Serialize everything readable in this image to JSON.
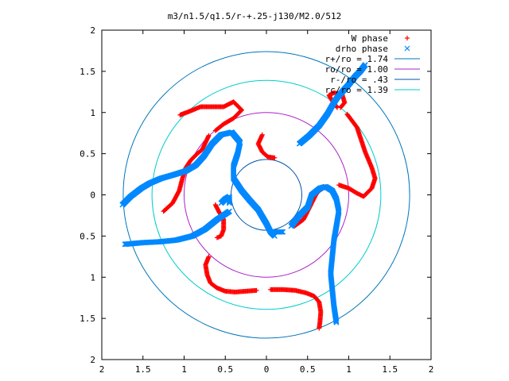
{
  "chart_data": {
    "type": "scatter",
    "title": "m3/n1.5/q1.5/r-+.25-j130/M2.0/512",
    "xlabel": "",
    "ylabel": "",
    "xlim": [
      -2,
      2
    ],
    "ylim": [
      -2,
      2
    ],
    "x_ticks": [
      -2,
      -1.5,
      -1,
      -0.5,
      0,
      0.5,
      1,
      1.5,
      2
    ],
    "y_ticks": [
      -2,
      -1.5,
      -1,
      -0.5,
      0,
      0.5,
      1,
      1.5,
      2
    ],
    "x_tick_labels": [
      "2",
      "1.5",
      "1",
      "0.5",
      "0",
      "0.5",
      "1",
      "1.5",
      "2"
    ],
    "y_tick_labels": [
      "2",
      "1.5",
      "1",
      "0.5",
      "0",
      "0.5",
      "1",
      "1.5",
      "2"
    ],
    "grid": false,
    "legend_position": "top-right",
    "legend": [
      {
        "label": "W phase",
        "type": "points",
        "marker": "+",
        "color": "#ff0000"
      },
      {
        "label": "drho phase",
        "type": "points",
        "marker": "x",
        "color": "#0088ff"
      },
      {
        "label": "r+/ro = 1.74",
        "type": "line",
        "color": "#0077bb"
      },
      {
        "label": "ro/ro = 1.00",
        "type": "line",
        "color": "#aa22cc"
      },
      {
        "label": "r-/ro = .43",
        "type": "line",
        "color": "#0055aa"
      },
      {
        "label": "rc/ro = 1.39",
        "type": "line",
        "color": "#00cccc"
      }
    ],
    "circles": [
      {
        "name": "r+/ro = 1.74",
        "r": 1.74,
        "color": "#0077bb"
      },
      {
        "name": "ro/ro = 1.00",
        "r": 1.0,
        "color": "#aa22cc"
      },
      {
        "name": "r-/ro = .43",
        "r": 0.43,
        "color": "#0055aa"
      },
      {
        "name": "rc/ro = 1.39",
        "r": 1.39,
        "color": "#00cccc"
      }
    ],
    "series": [
      {
        "name": "W phase",
        "color": "#ff0000",
        "arms": [
          [
            [
              -1.25,
              -0.2
            ],
            [
              -1.14,
              -0.1
            ],
            [
              -1.06,
              0.05
            ],
            [
              -1.02,
              0.2
            ],
            [
              -0.98,
              0.33
            ],
            [
              -0.92,
              0.42
            ],
            [
              -0.84,
              0.5
            ],
            [
              -0.78,
              0.55
            ],
            [
              -0.7,
              0.72
            ]
          ],
          [
            [
              -0.62,
              0.78
            ],
            [
              -0.52,
              0.86
            ],
            [
              -0.4,
              0.93
            ],
            [
              -0.3,
              1.03
            ],
            [
              -0.4,
              1.13
            ],
            [
              -0.52,
              1.07
            ],
            [
              -0.66,
              1.07
            ],
            [
              -0.8,
              1.07
            ],
            [
              -0.92,
              1.02
            ],
            [
              -1.05,
              0.97
            ]
          ],
          [
            [
              -0.05,
              0.73
            ],
            [
              -0.1,
              0.62
            ],
            [
              -0.05,
              0.52
            ],
            [
              0.02,
              0.46
            ],
            [
              0.1,
              0.45
            ]
          ],
          [
            [
              -0.62,
              -0.12
            ],
            [
              -0.58,
              -0.2
            ],
            [
              -0.52,
              -0.3
            ],
            [
              -0.52,
              -0.42
            ],
            [
              -0.55,
              -0.5
            ],
            [
              -0.6,
              -0.52
            ]
          ],
          [
            [
              -0.7,
              -0.75
            ],
            [
              -0.74,
              -0.85
            ],
            [
              -0.72,
              -0.97
            ],
            [
              -0.68,
              -1.07
            ],
            [
              -0.6,
              -1.13
            ],
            [
              -0.5,
              -1.17
            ],
            [
              -0.38,
              -1.18
            ],
            [
              -0.25,
              -1.17
            ],
            [
              -0.12,
              -1.16
            ]
          ],
          [
            [
              0.05,
              -1.15
            ],
            [
              0.2,
              -1.15
            ],
            [
              0.35,
              -1.16
            ],
            [
              0.48,
              -1.19
            ],
            [
              0.58,
              -1.23
            ],
            [
              0.64,
              -1.3
            ],
            [
              0.66,
              -1.42
            ],
            [
              0.65,
              -1.55
            ],
            [
              0.64,
              -1.62
            ]
          ],
          [
            [
              0.34,
              -0.38
            ],
            [
              0.45,
              -0.3
            ],
            [
              0.54,
              -0.12
            ],
            [
              0.6,
              0.0
            ],
            [
              0.64,
              0.05
            ],
            [
              0.72,
              0.1
            ]
          ],
          [
            [
              0.88,
              0.12
            ],
            [
              1.0,
              0.08
            ],
            [
              1.1,
              0.02
            ],
            [
              1.18,
              -0.02
            ],
            [
              1.28,
              0.08
            ],
            [
              1.32,
              0.2
            ],
            [
              1.28,
              0.33
            ],
            [
              1.2,
              0.52
            ],
            [
              1.1,
              0.82
            ],
            [
              0.98,
              0.98
            ]
          ],
          [
            [
              0.86,
              1.06
            ],
            [
              0.8,
              1.14
            ],
            [
              0.76,
              1.21
            ],
            [
              0.82,
              1.24
            ],
            [
              0.92,
              1.22
            ],
            [
              0.95,
              1.12
            ],
            [
              0.9,
              1.06
            ]
          ]
        ]
      },
      {
        "name": "drho phase",
        "color": "#0088ff",
        "arms": [
          [
            [
              -1.75,
              -0.12
            ],
            [
              -1.65,
              -0.02
            ],
            [
              -1.52,
              0.08
            ],
            [
              -1.42,
              0.14
            ],
            [
              -1.28,
              0.2
            ],
            [
              -1.14,
              0.24
            ],
            [
              -0.98,
              0.29
            ],
            [
              -0.86,
              0.36
            ],
            [
              -0.76,
              0.47
            ],
            [
              -0.66,
              0.62
            ],
            [
              -0.55,
              0.73
            ],
            [
              -0.42,
              0.76
            ]
          ],
          [
            [
              -0.42,
              0.76
            ],
            [
              -0.32,
              0.64
            ],
            [
              -0.35,
              0.5
            ],
            [
              -0.4,
              0.35
            ],
            [
              -0.4,
              0.2
            ],
            [
              -0.3,
              0.05
            ],
            [
              -0.2,
              -0.07
            ],
            [
              -0.1,
              -0.18
            ],
            [
              0.0,
              -0.35
            ],
            [
              0.05,
              -0.45
            ],
            [
              0.1,
              -0.5
            ]
          ],
          [
            [
              0.3,
              -0.38
            ],
            [
              0.4,
              -0.25
            ],
            [
              0.5,
              -0.15
            ],
            [
              0.55,
              0.0
            ],
            [
              0.65,
              0.08
            ],
            [
              0.72,
              0.1
            ],
            [
              0.8,
              0.05
            ],
            [
              0.85,
              -0.05
            ],
            [
              0.88,
              -0.2
            ],
            [
              0.85,
              -0.38
            ],
            [
              0.82,
              -0.55
            ],
            [
              0.8,
              -0.75
            ],
            [
              0.78,
              -0.95
            ],
            [
              0.8,
              -1.15
            ],
            [
              0.82,
              -1.35
            ],
            [
              0.85,
              -1.55
            ]
          ],
          [
            [
              -0.45,
              -0.1
            ],
            [
              -0.45,
              -0.02
            ],
            [
              -0.5,
              -0.05
            ],
            [
              -0.55,
              -0.1
            ]
          ],
          [
            [
              0.1,
              -0.45
            ],
            [
              0.15,
              -0.45
            ],
            [
              0.2,
              -0.45
            ]
          ],
          [
            [
              -0.45,
              -0.2
            ],
            [
              -0.6,
              -0.3
            ],
            [
              -0.75,
              -0.42
            ],
            [
              -0.9,
              -0.5
            ],
            [
              -1.1,
              -0.55
            ],
            [
              -1.3,
              -0.57
            ],
            [
              -1.5,
              -0.58
            ],
            [
              -1.72,
              -0.6
            ]
          ],
          [
            [
              0.4,
              0.62
            ],
            [
              0.52,
              0.72
            ],
            [
              0.64,
              0.84
            ],
            [
              0.74,
              0.98
            ],
            [
              0.82,
              1.12
            ],
            [
              0.86,
              1.18
            ],
            [
              0.92,
              1.25
            ],
            [
              1.0,
              1.34
            ],
            [
              1.08,
              1.44
            ],
            [
              1.14,
              1.5
            ],
            [
              1.2,
              1.58
            ]
          ]
        ]
      }
    ]
  }
}
